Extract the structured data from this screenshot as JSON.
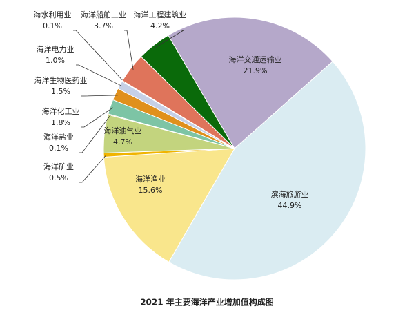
{
  "chart_data": {
    "type": "pie",
    "title": "2021 年主要海洋产业增加值构成图",
    "categories": [
      "海洋交通运输业",
      "滨海旅游业",
      "海洋渔业",
      "海洋矿业",
      "海洋油气业",
      "海洋盐业",
      "海洋化工业",
      "海洋生物医药业",
      "海洋电力业",
      "海水利用业",
      "海洋船舶工业",
      "海洋工程建筑业"
    ],
    "values": [
      21.9,
      44.9,
      15.6,
      0.5,
      4.7,
      0.1,
      1.8,
      1.5,
      1.0,
      0.1,
      3.7,
      4.2
    ],
    "value_labels": [
      "21.9%",
      "44.9%",
      "15.6%",
      "0.5%",
      "4.7%",
      "0.1%",
      "1.8%",
      "1.5%",
      "1.0%",
      "0.1%",
      "3.7%",
      "4.2%"
    ],
    "colors": [
      "#b5a8ca",
      "#daecf2",
      "#f9e68c",
      "#f0b400",
      "#c3d47e",
      "#e9a640",
      "#7dc4a5",
      "#e0901c",
      "#c6d0e6",
      "#eef2f8",
      "#df745b",
      "#0a6a0a"
    ]
  }
}
